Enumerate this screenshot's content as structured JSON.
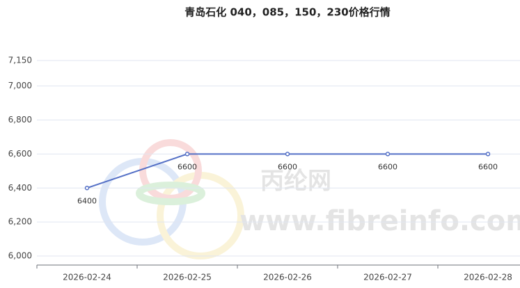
{
  "chart_data": {
    "type": "line",
    "title": "青岛石化 040，085，150，230价格行情",
    "categories": [
      "2026-02-24",
      "2026-02-25",
      "2026-02-26",
      "2026-02-27",
      "2026-02-28"
    ],
    "values": [
      6400,
      6600,
      6600,
      6600,
      6600
    ],
    "color": "#5470c6",
    "ylim": [
      6000,
      7150
    ],
    "yticks": [
      {
        "value": 6000,
        "label": "6,000"
      },
      {
        "value": 6200,
        "label": "6,200"
      },
      {
        "value": 6400,
        "label": "6,400"
      },
      {
        "value": 6600,
        "label": "6,600"
      },
      {
        "value": 6800,
        "label": "6,800"
      },
      {
        "value": 7000,
        "label": "7,000"
      },
      {
        "value": 7150,
        "label": "7,150"
      }
    ],
    "grid": true,
    "watermark": [
      "丙纶网",
      "www.fibreinfo.com"
    ]
  }
}
